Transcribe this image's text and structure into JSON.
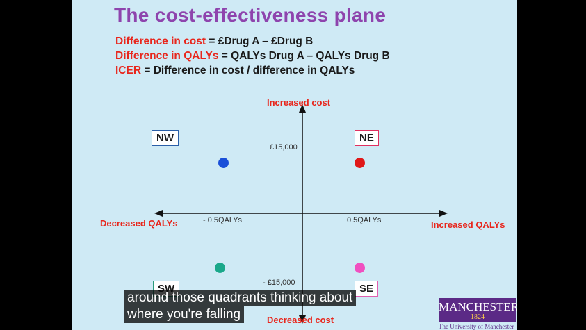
{
  "slide": {
    "title": "The cost-effectiveness plane",
    "definitions": [
      {
        "term": "Difference in cost",
        "rest": " = £Drug A – £Drug B"
      },
      {
        "term": "Difference in QALYs",
        "rest": " = QALYs Drug A – QALYs Drug B"
      },
      {
        "term": "ICER",
        "rest": " = Difference in cost  / difference in QALYs"
      }
    ]
  },
  "plane": {
    "y_top_label": "Increased cost",
    "y_bottom_label": "Decreased cost",
    "x_left_label": "Decreased QALYs",
    "x_right_label": "Increased QALYs",
    "tick_y_pos": "£15,000",
    "tick_y_neg": "- £15,000",
    "tick_x_neg": "- 0.5QALYs",
    "tick_x_pos": "0.5QALYs",
    "quadrants": {
      "nw": "NW",
      "ne": "NE",
      "sw": "SW",
      "se": "SE"
    },
    "dot_colors": {
      "nw": "#1a4fd8",
      "ne": "#e01818",
      "sw": "#1aa88a",
      "se": "#f050c0"
    }
  },
  "logo": {
    "name": "MANCHESTER",
    "year": "1824",
    "caption": "The University of Manchester"
  },
  "captions": {
    "line1": "around those quadrants thinking about",
    "line2": "where you're falling"
  }
}
